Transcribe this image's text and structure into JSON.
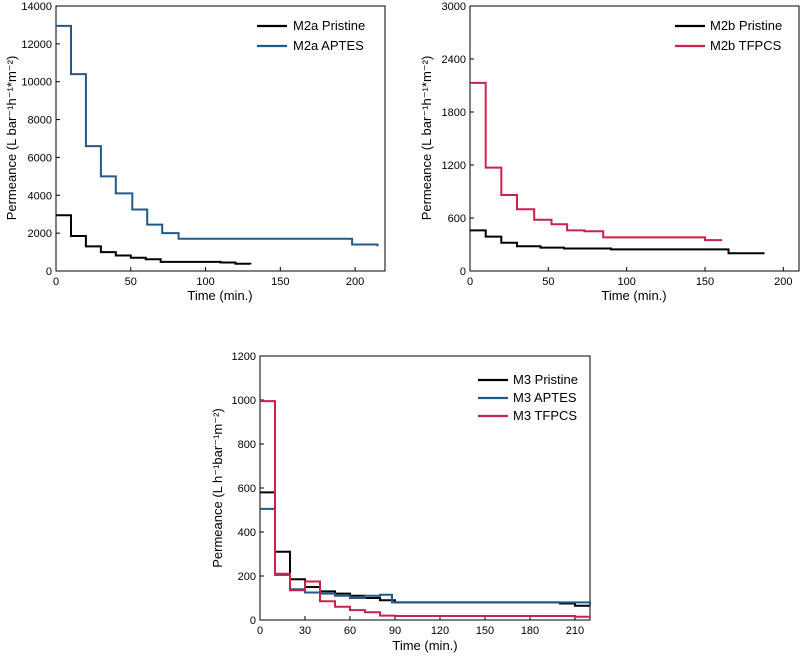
{
  "colors": {
    "black": "#000000",
    "blue": "#1f5a8a",
    "red": "#c8234a"
  },
  "chart_data": [
    {
      "id": "m2a",
      "type": "line",
      "xlabel": "Time (min.)",
      "ylabel": "Permeance (L bar⁻¹h⁻¹*m⁻²)",
      "xlim": [
        0,
        220
      ],
      "ylim": [
        0,
        14000
      ],
      "xticks": [
        0,
        50,
        100,
        150,
        200
      ],
      "yticks": [
        0,
        2000,
        4000,
        6000,
        8000,
        10000,
        12000,
        14000
      ],
      "legend_position": "top-right",
      "series": [
        {
          "name": "M2a Pristine",
          "color": "black",
          "points": [
            [
              0,
              2950
            ],
            [
              10,
              1850
            ],
            [
              20,
              1300
            ],
            [
              30,
              1000
            ],
            [
              40,
              820
            ],
            [
              50,
              700
            ],
            [
              60,
              620
            ],
            [
              70,
              480
            ],
            [
              110,
              450
            ],
            [
              120,
              380
            ],
            [
              130,
              360
            ]
          ]
        },
        {
          "name": "M2a APTES",
          "color": "blue",
          "points": [
            [
              0,
              12950
            ],
            [
              10,
              10400
            ],
            [
              20,
              6600
            ],
            [
              30,
              5000
            ],
            [
              40,
              4100
            ],
            [
              51,
              3250
            ],
            [
              61,
              2450
            ],
            [
              71,
              2000
            ],
            [
              82,
              1700
            ],
            [
              198,
              1700
            ],
            [
              198,
              1400
            ],
            [
              215,
              1300
            ]
          ]
        }
      ]
    },
    {
      "id": "m2b",
      "type": "line",
      "xlabel": "Time (min.)",
      "ylabel": "Permeance (L bar⁻¹h⁻¹*m⁻²)",
      "xlim": [
        0,
        210
      ],
      "ylim": [
        0,
        3000
      ],
      "xticks": [
        0,
        50,
        100,
        150,
        200
      ],
      "yticks": [
        0,
        600,
        1200,
        1800,
        2400,
        3000
      ],
      "legend_position": "top-right",
      "series": [
        {
          "name": "M2b Pristine",
          "color": "black",
          "points": [
            [
              0,
              460
            ],
            [
              10,
              390
            ],
            [
              20,
              320
            ],
            [
              30,
              280
            ],
            [
              45,
              265
            ],
            [
              60,
              255
            ],
            [
              90,
              245
            ],
            [
              165,
              200
            ],
            [
              188,
              200
            ]
          ]
        },
        {
          "name": "M2b TFPCS",
          "color": "red",
          "points": [
            [
              0,
              2130
            ],
            [
              10,
              1170
            ],
            [
              20,
              860
            ],
            [
              30,
              700
            ],
            [
              41,
              580
            ],
            [
              52,
              530
            ],
            [
              62,
              460
            ],
            [
              73,
              450
            ],
            [
              85,
              380
            ],
            [
              150,
              380
            ],
            [
              150,
              350
            ],
            [
              161,
              350
            ]
          ]
        }
      ]
    },
    {
      "id": "m3",
      "type": "line",
      "xlabel": "Time (min.)",
      "ylabel": "Permeance (L h⁻¹bar⁻¹m⁻²)",
      "xlim": [
        0,
        220
      ],
      "ylim": [
        0,
        1200
      ],
      "xticks": [
        0,
        30,
        60,
        90,
        120,
        150,
        180,
        210
      ],
      "yticks": [
        0,
        200,
        400,
        600,
        800,
        1000,
        1200
      ],
      "legend_position": "top-right",
      "series": [
        {
          "name": "M3 Pristine",
          "color": "black",
          "points": [
            [
              0,
              580
            ],
            [
              10,
              310
            ],
            [
              20,
              185
            ],
            [
              30,
              150
            ],
            [
              40,
              130
            ],
            [
              50,
              120
            ],
            [
              60,
              110
            ],
            [
              70,
              100
            ],
            [
              80,
              90
            ],
            [
              90,
              80
            ],
            [
              200,
              75
            ],
            [
              210,
              65
            ],
            [
              220,
              65
            ]
          ]
        },
        {
          "name": "M3 APTES",
          "color": "blue",
          "points": [
            [
              0,
              505
            ],
            [
              10,
              205
            ],
            [
              20,
              140
            ],
            [
              30,
              125
            ],
            [
              40,
              120
            ],
            [
              50,
              110
            ],
            [
              60,
              100
            ],
            [
              70,
              110
            ],
            [
              80,
              115
            ],
            [
              88,
              80
            ],
            [
              210,
              80
            ],
            [
              220,
              65
            ]
          ]
        },
        {
          "name": "M3 TFPCS",
          "color": "red",
          "points": [
            [
              0,
              995
            ],
            [
              10,
              210
            ],
            [
              20,
              135
            ],
            [
              30,
              175
            ],
            [
              40,
              85
            ],
            [
              50,
              60
            ],
            [
              60,
              45
            ],
            [
              70,
              35
            ],
            [
              80,
              20
            ],
            [
              90,
              18
            ],
            [
              210,
              15
            ],
            [
              220,
              15
            ]
          ]
        }
      ]
    }
  ]
}
